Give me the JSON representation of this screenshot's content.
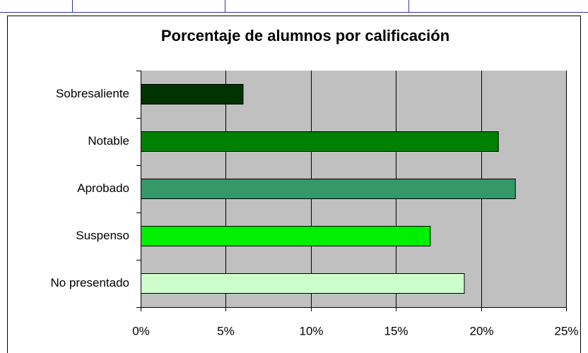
{
  "chart_data": {
    "type": "bar",
    "orientation": "horizontal",
    "title": "Porcentaje de alumnos por calificación",
    "categories": [
      "Sobresaliente",
      "Notable",
      "Aprobado",
      "Suspenso",
      "No presentado"
    ],
    "values": [
      6,
      21,
      22,
      17,
      19
    ],
    "colors": [
      "#003300",
      "#008000",
      "#339966",
      "#00ee00",
      "#ccffcc"
    ],
    "xlim": [
      0,
      25
    ],
    "xticks": [
      {
        "value": 0,
        "label": "0%"
      },
      {
        "value": 5,
        "label": "5%"
      },
      {
        "value": 10,
        "label": "10%"
      },
      {
        "value": 15,
        "label": "15%"
      },
      {
        "value": 20,
        "label": "20%"
      },
      {
        "value": 25,
        "label": "25%"
      }
    ],
    "grid": true
  }
}
